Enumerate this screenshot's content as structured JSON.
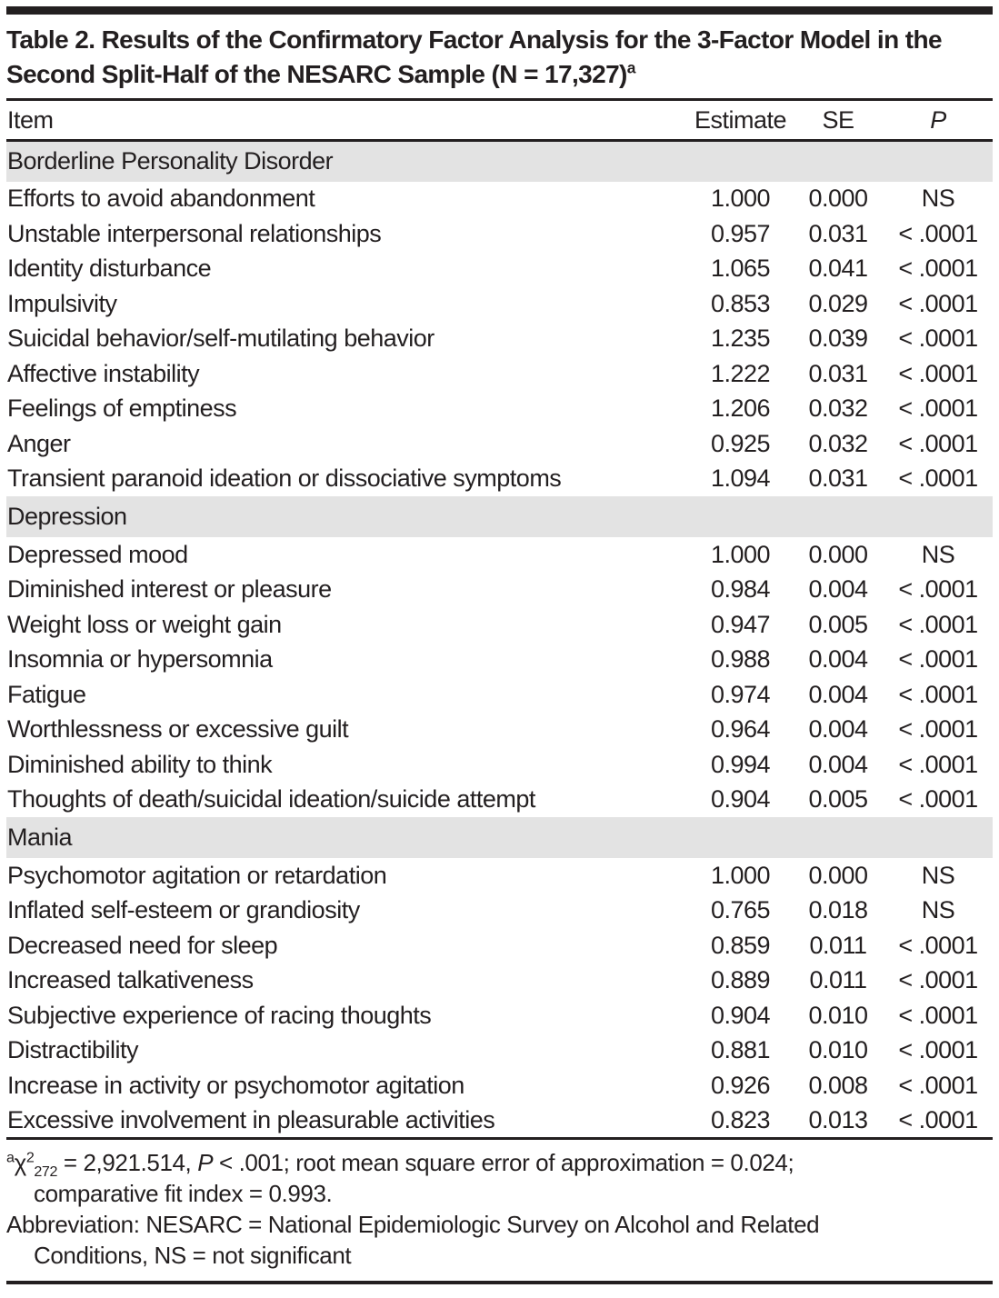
{
  "colors": {
    "text": "#231f20",
    "section_band": "#e3e3e3",
    "rule": "#231f20",
    "background": "#ffffff"
  },
  "title": {
    "text": "Table 2. Results of the Confirmatory Factor Analysis for the 3-Factor Model in the Second Split-Half of the NESARC Sample (N = 17,327)",
    "footnote_marker": "a"
  },
  "table": {
    "columns": [
      "Item",
      "Estimate",
      "SE",
      "P"
    ],
    "sections": [
      {
        "name": "Borderline Personality Disorder",
        "rows": [
          {
            "item": "Efforts to avoid abandonment",
            "estimate": "1.000",
            "se": "0.000",
            "p": "NS"
          },
          {
            "item": "Unstable interpersonal relationships",
            "estimate": "0.957",
            "se": "0.031",
            "p": "< .0001"
          },
          {
            "item": "Identity disturbance",
            "estimate": "1.065",
            "se": "0.041",
            "p": "< .0001"
          },
          {
            "item": "Impulsivity",
            "estimate": "0.853",
            "se": "0.029",
            "p": "< .0001"
          },
          {
            "item": "Suicidal behavior/self-mutilating behavior",
            "estimate": "1.235",
            "se": "0.039",
            "p": "< .0001"
          },
          {
            "item": "Affective instability",
            "estimate": "1.222",
            "se": "0.031",
            "p": "< .0001"
          },
          {
            "item": "Feelings of emptiness",
            "estimate": "1.206",
            "se": "0.032",
            "p": "< .0001"
          },
          {
            "item": "Anger",
            "estimate": "0.925",
            "se": "0.032",
            "p": "< .0001"
          },
          {
            "item": "Transient paranoid ideation or dissociative symptoms",
            "estimate": "1.094",
            "se": "0.031",
            "p": "< .0001"
          }
        ]
      },
      {
        "name": "Depression",
        "rows": [
          {
            "item": "Depressed mood",
            "estimate": "1.000",
            "se": "0.000",
            "p": "NS"
          },
          {
            "item": "Diminished interest or pleasure",
            "estimate": "0.984",
            "se": "0.004",
            "p": "< .0001"
          },
          {
            "item": "Weight loss or weight gain",
            "estimate": "0.947",
            "se": "0.005",
            "p": "< .0001"
          },
          {
            "item": "Insomnia or hypersomnia",
            "estimate": "0.988",
            "se": "0.004",
            "p": "< .0001"
          },
          {
            "item": "Fatigue",
            "estimate": "0.974",
            "se": "0.004",
            "p": "< .0001"
          },
          {
            "item": "Worthlessness or excessive guilt",
            "estimate": "0.964",
            "se": "0.004",
            "p": "< .0001"
          },
          {
            "item": "Diminished ability to think",
            "estimate": "0.994",
            "se": "0.004",
            "p": "< .0001"
          },
          {
            "item": "Thoughts of death/suicidal ideation/suicide attempt",
            "estimate": "0.904",
            "se": "0.005",
            "p": "< .0001"
          }
        ]
      },
      {
        "name": "Mania",
        "rows": [
          {
            "item": "Psychomotor agitation or retardation",
            "estimate": "1.000",
            "se": "0.000",
            "p": "NS"
          },
          {
            "item": "Inflated self-esteem or grandiosity",
            "estimate": "0.765",
            "se": "0.018",
            "p": "NS"
          },
          {
            "item": "Decreased need for sleep",
            "estimate": "0.859",
            "se": "0.011",
            "p": "< .0001"
          },
          {
            "item": "Increased talkativeness",
            "estimate": "0.889",
            "se": "0.011",
            "p": "< .0001"
          },
          {
            "item": "Subjective experience of racing thoughts",
            "estimate": "0.904",
            "se": "0.010",
            "p": "< .0001"
          },
          {
            "item": "Distractibility",
            "estimate": "0.881",
            "se": "0.010",
            "p": "< .0001"
          },
          {
            "item": "Increase in activity or psychomotor agitation",
            "estimate": "0.926",
            "se": "0.008",
            "p": "< .0001"
          },
          {
            "item": "Excessive involvement in pleasurable activities",
            "estimate": "0.823",
            "se": "0.013",
            "p": "< .0001"
          }
        ]
      }
    ]
  },
  "footnotes": {
    "stats": {
      "marker": "a",
      "chi": "χ",
      "chi_sup": "2",
      "chi_sub": "272",
      "text_a": " = 2,921.514, ",
      "p_label": "P",
      "text_b": " < .001; root mean square error of approximation = 0.024;",
      "line2": "comparative fit index = 0.993."
    },
    "abbreviation": {
      "line1": "Abbreviation: NESARC = National Epidemiologic Survey on Alcohol and Related",
      "line2": "Conditions, NS = not significant"
    }
  }
}
